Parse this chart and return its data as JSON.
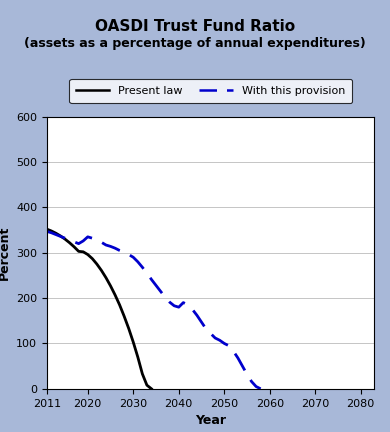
{
  "title": "OASDI Trust Fund Ratio",
  "subtitle": "(assets as a percentage of annual expenditures)",
  "xlabel": "Year",
  "ylabel": "Percent",
  "xlim": [
    2011,
    2083
  ],
  "ylim": [
    0,
    600
  ],
  "xticks": [
    2011,
    2020,
    2030,
    2040,
    2050,
    2060,
    2070,
    2080
  ],
  "yticks": [
    0,
    100,
    200,
    300,
    400,
    500,
    600
  ],
  "bg_color": "#a8b8d8",
  "plot_bg_color": "#ffffff",
  "present_law": {
    "x": [
      2011,
      2012,
      2013,
      2014,
      2015,
      2016,
      2017,
      2018,
      2019,
      2020,
      2021,
      2022,
      2023,
      2024,
      2025,
      2026,
      2027,
      2028,
      2029,
      2030,
      2031,
      2032,
      2033,
      2034
    ],
    "y": [
      352,
      348,
      343,
      337,
      330,
      322,
      313,
      303,
      302,
      296,
      287,
      275,
      261,
      245,
      227,
      207,
      185,
      160,
      133,
      103,
      70,
      33,
      8,
      0
    ],
    "color": "#000000",
    "linestyle": "solid",
    "linewidth": 2.0,
    "label": "Present law"
  },
  "provision": {
    "x": [
      2011,
      2012,
      2013,
      2014,
      2015,
      2016,
      2017,
      2018,
      2019,
      2020,
      2021,
      2022,
      2023,
      2024,
      2025,
      2026,
      2027,
      2028,
      2029,
      2030,
      2031,
      2032,
      2033,
      2034,
      2035,
      2036,
      2037,
      2038,
      2039,
      2040,
      2041,
      2042,
      2043,
      2044,
      2045,
      2046,
      2047,
      2048,
      2049,
      2050,
      2051,
      2052,
      2053,
      2054,
      2055,
      2056,
      2057,
      2058
    ],
    "y": [
      347,
      344,
      340,
      336,
      332,
      328,
      324,
      320,
      326,
      335,
      332,
      328,
      323,
      317,
      314,
      310,
      305,
      301,
      296,
      290,
      280,
      268,
      255,
      241,
      228,
      215,
      202,
      191,
      183,
      180,
      190,
      185,
      175,
      162,
      147,
      132,
      122,
      112,
      107,
      100,
      95,
      83,
      68,
      50,
      32,
      16,
      5,
      0
    ],
    "color": "#0000cc",
    "linestyle": "dashed",
    "linewidth": 2.0,
    "label": "With this provision"
  },
  "legend_box_color": "#ffffff",
  "legend_edge_color": "#000000",
  "title_fontsize": 11,
  "subtitle_fontsize": 9,
  "axis_label_fontsize": 9,
  "tick_fontsize": 8
}
